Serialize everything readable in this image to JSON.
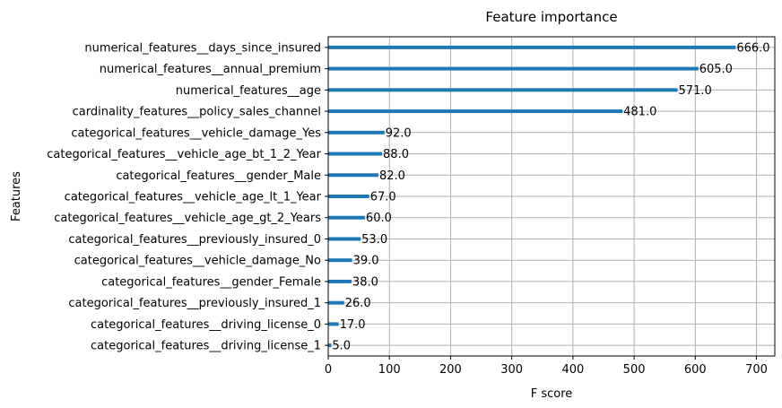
{
  "chart_data": {
    "type": "bar",
    "orientation": "horizontal",
    "title": "Feature importance",
    "xlabel": "F score",
    "ylabel": "Features",
    "xlim": [
      0,
      730
    ],
    "xticks": [
      0,
      100,
      200,
      300,
      400,
      500,
      600,
      700
    ],
    "grid": true,
    "bar_color": "#1f77b4",
    "categories": [
      "numerical_features__days_since_insured",
      "numerical_features__annual_premium",
      "numerical_features__age",
      "cardinality_features__policy_sales_channel",
      "categorical_features__vehicle_damage_Yes",
      "categorical_features__vehicle_age_bt_1_2_Year",
      "categorical_features__gender_Male",
      "categorical_features__vehicle_age_lt_1_Year",
      "categorical_features__vehicle_age_gt_2_Years",
      "categorical_features__previously_insured_0",
      "categorical_features__vehicle_damage_No",
      "categorical_features__gender_Female",
      "categorical_features__previously_insured_1",
      "categorical_features__driving_license_0",
      "categorical_features__driving_license_1"
    ],
    "values": [
      666,
      605,
      571,
      481,
      92,
      88,
      82,
      67,
      60,
      53,
      39,
      38,
      26,
      17,
      5
    ],
    "value_labels": [
      "666.0",
      "605.0",
      "571.0",
      "481.0",
      "92.0",
      "88.0",
      "82.0",
      "67.0",
      "60.0",
      "53.0",
      "39.0",
      "38.0",
      "26.0",
      "17.0",
      "5.0"
    ]
  }
}
